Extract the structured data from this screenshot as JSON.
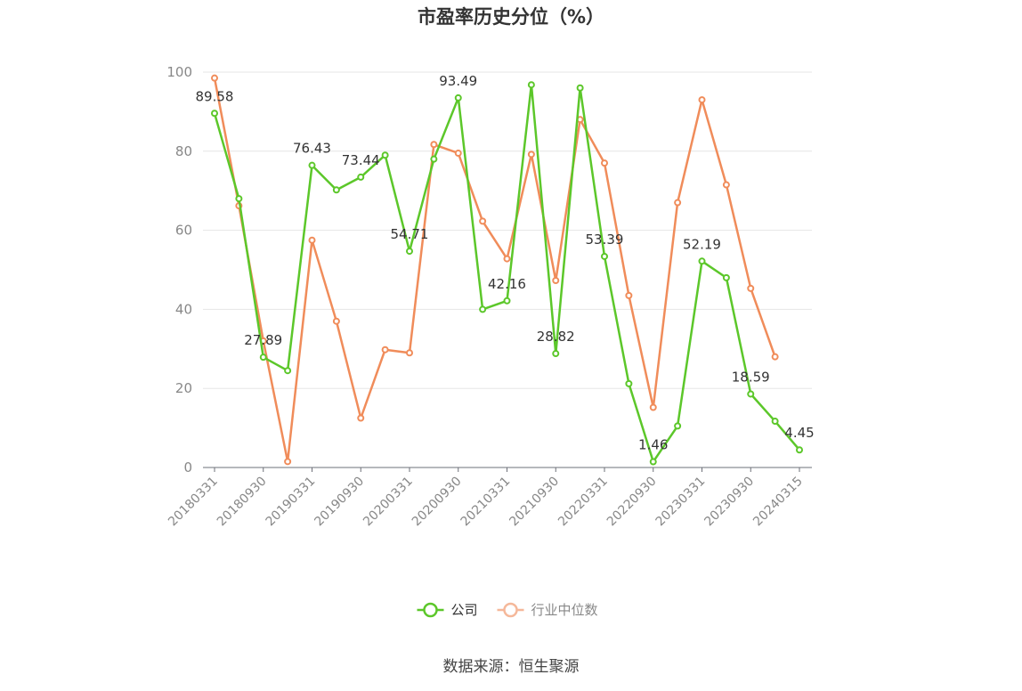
{
  "source_label": "数据来源：恒生聚源",
  "chart_data": {
    "type": "line",
    "title": "市盈率历史分位（%）",
    "xlabel": "",
    "ylabel": "",
    "ylim": [
      0,
      100
    ],
    "yticks": [
      0,
      20,
      40,
      60,
      80,
      100
    ],
    "grid": true,
    "legend_position": "bottom-center",
    "x_tick_labels": [
      "20180331",
      "20180930",
      "20190331",
      "20190930",
      "20200331",
      "20200930",
      "20210331",
      "20210930",
      "20220331",
      "20220930",
      "20230331",
      "20230930",
      "20240315"
    ],
    "x": [
      "20180331",
      "20180630",
      "20180930",
      "20181231",
      "20190331",
      "20190630",
      "20190930",
      "20191231",
      "20200331",
      "20200630",
      "20200930",
      "20201231",
      "20210331",
      "20210630",
      "20210930",
      "20211231",
      "20220331",
      "20220630",
      "20220930",
      "20221231",
      "20230331",
      "20230630",
      "20230930",
      "20231231",
      "20240315"
    ],
    "series": [
      {
        "name": "公司",
        "color": "#5cc72a",
        "values": [
          89.58,
          68,
          27.89,
          24.5,
          76.43,
          70.2,
          73.44,
          79,
          54.71,
          78,
          93.49,
          40,
          42.16,
          96.8,
          28.82,
          96,
          53.39,
          21.2,
          1.46,
          10.5,
          52.19,
          48,
          18.59,
          11.7,
          4.45
        ],
        "labels": [
          "89.58",
          "",
          "27.89",
          "",
          "76.43",
          "",
          "73.44",
          "",
          "54.71",
          "",
          "93.49",
          "",
          "42.16",
          "",
          "28.82",
          "",
          "53.39",
          "",
          "1.46",
          "",
          "52.19",
          "",
          "18.59",
          "",
          "4.45"
        ]
      },
      {
        "name": "行业中位数",
        "color": "#f08c5a",
        "values": [
          98.5,
          66.2,
          32,
          1.5,
          57.5,
          37,
          12.5,
          29.8,
          29,
          81.7,
          79.5,
          62.3,
          52.8,
          79.2,
          47.3,
          88,
          77,
          43.5,
          15.2,
          67,
          93,
          71.5,
          45.3,
          28,
          null
        ],
        "labels": []
      }
    ]
  }
}
